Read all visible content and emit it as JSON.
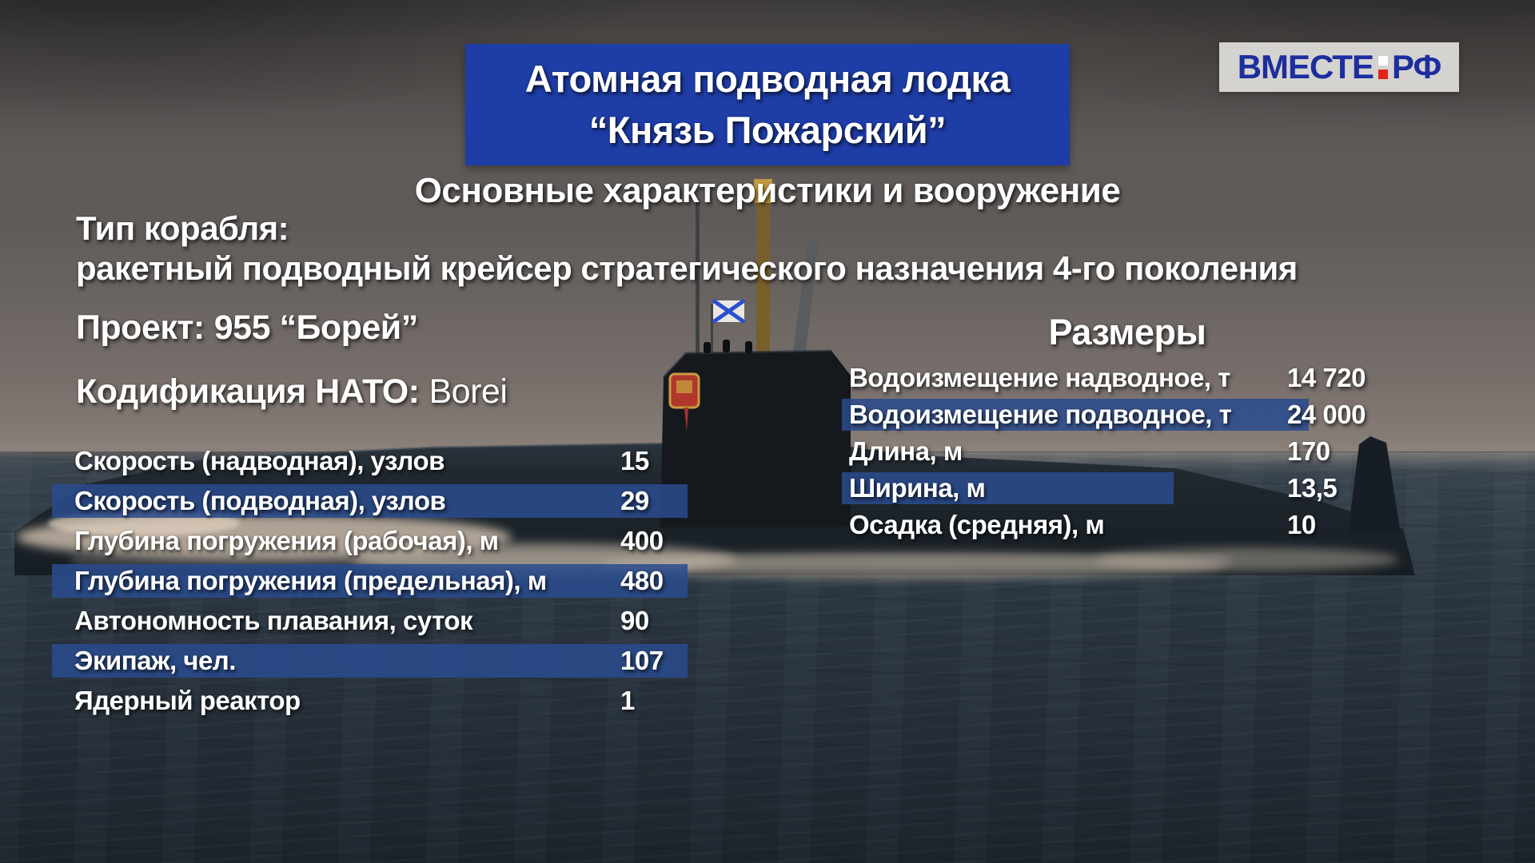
{
  "header": {
    "title_line1": "Атомная подводная лодка",
    "title_line2": "“Князь Пожарский”",
    "subtitle": "Основные характеристики и вооружение"
  },
  "channel_logo": {
    "part1": "ВМЕСТЕ",
    "part2": "РФ",
    "colors": {
      "text": "#1d2e9e",
      "background": "#d9d8d5",
      "colon_top": "#fdfdfd",
      "colon_bottom": "#e1251b"
    }
  },
  "ship_type": {
    "label": "Тип корабля:",
    "value": "ракетный подводный крейсер стратегического назначения 4-го поколения"
  },
  "project": {
    "label": "Проект:",
    "value": "955 “Борей”"
  },
  "nato_code": {
    "label": "Кодификация НАТО:",
    "value": "Borei"
  },
  "colors": {
    "title_box": "#1e3da7",
    "highlight_bar": "#2a4c8e",
    "text": "#ffffff"
  },
  "left_table": {
    "rows": [
      {
        "label": "Скорость (надводная), узлов",
        "value": "15",
        "highlighted": false
      },
      {
        "label": "Скорость (подводная), узлов",
        "value": "29",
        "highlighted": true
      },
      {
        "label": "Глубина погружения (рабочая), м",
        "value": "400",
        "highlighted": false
      },
      {
        "label": "Глубина погружения (предельная), м",
        "value": "480",
        "highlighted": true
      },
      {
        "label": "Автономность плавания, суток",
        "value": "90",
        "highlighted": false
      },
      {
        "label": "Экипаж, чел.",
        "value": "107",
        "highlighted": true
      },
      {
        "label": "Ядерный реактор",
        "value": "1",
        "highlighted": false
      }
    ]
  },
  "right_table": {
    "title": "Размеры",
    "rows": [
      {
        "label": "Водоизмещение надводное, т",
        "value": "14 720",
        "highlighted": false
      },
      {
        "label": "Водоизмещение подводное, т",
        "value": "24 000",
        "highlighted": true
      },
      {
        "label": "Длина, м",
        "value": "170",
        "highlighted": false
      },
      {
        "label": "Ширина, м",
        "value": "13,5",
        "highlighted": true
      },
      {
        "label": "Осадка (средняя), м",
        "value": "10",
        "highlighted": false
      }
    ]
  }
}
